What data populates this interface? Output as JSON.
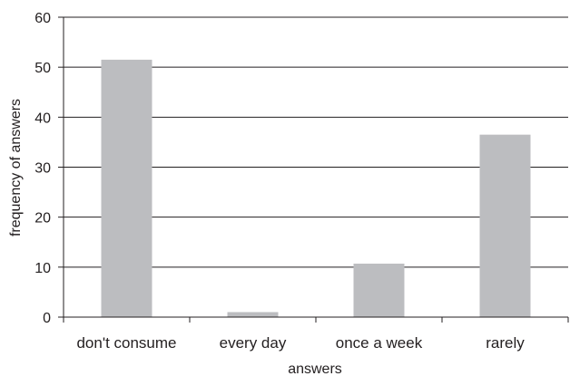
{
  "chart_data": {
    "type": "bar",
    "categories": [
      "don't consume",
      "every day",
      "once a week",
      "rarely"
    ],
    "values": [
      51.5,
      1,
      10.7,
      36.5
    ],
    "xlabel": "answers",
    "ylabel": "frequency of answers",
    "ylim": [
      0,
      60
    ],
    "yticks": [
      "0",
      "10",
      "20",
      "30",
      "40",
      "50",
      "60"
    ],
    "grid": true,
    "bar_color": "#bcbdc0",
    "grid_color": "#231f20",
    "axis_color": "#231f20"
  }
}
